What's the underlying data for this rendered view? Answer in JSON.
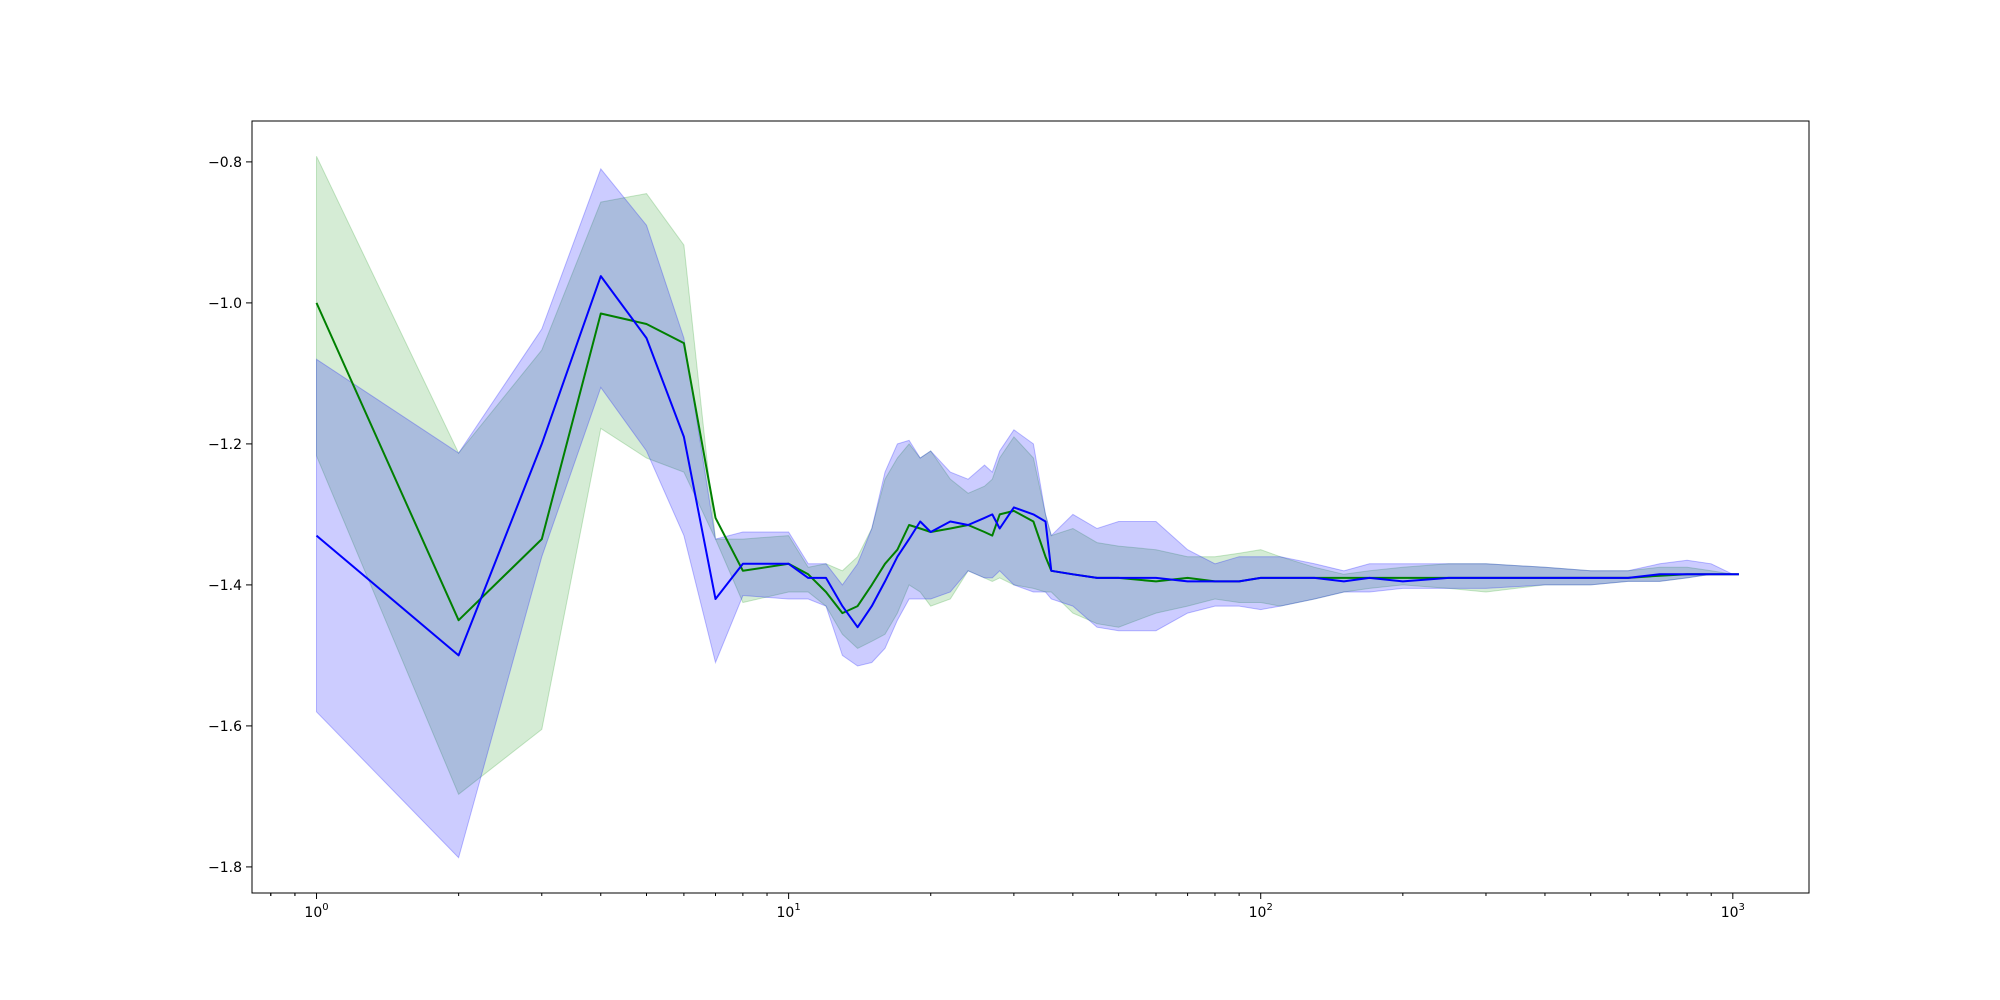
{
  "chart_data": {
    "type": "line",
    "title": "",
    "xlabel": "",
    "ylabel": "",
    "xscale": "log",
    "xlim": [
      0.73,
      1450
    ],
    "ylim": [
      -1.837,
      -0.742
    ],
    "grid": false,
    "legend": "none",
    "x_ticks": [
      {
        "value": 1,
        "base": "10",
        "exp": "0"
      },
      {
        "value": 10,
        "base": "10",
        "exp": "1"
      },
      {
        "value": 100,
        "base": "10",
        "exp": "2"
      },
      {
        "value": 1000,
        "base": "10",
        "exp": "3"
      }
    ],
    "y_ticks": [
      {
        "value": -0.8,
        "label": "−0.8"
      },
      {
        "value": -1.0,
        "label": "−1.0"
      },
      {
        "value": -1.2,
        "label": "−1.2"
      },
      {
        "value": -1.4,
        "label": "−1.4"
      },
      {
        "value": -1.6,
        "label": "−1.6"
      },
      {
        "value": -1.8,
        "label": "−1.8"
      }
    ],
    "series": [
      {
        "color": "#008000",
        "band_color": "#2ca02c",
        "x": [
          1,
          2,
          3,
          4,
          5,
          6,
          7,
          8,
          10,
          11,
          12,
          13,
          14,
          15,
          16,
          17,
          18,
          19,
          20,
          22,
          24,
          26,
          27,
          28,
          30,
          33,
          35,
          36,
          40,
          45,
          50,
          60,
          70,
          80,
          90,
          100,
          110,
          130,
          150,
          170,
          200,
          250,
          300,
          400,
          500,
          600,
          700,
          800,
          900,
          1000,
          1030
        ],
        "y": [
          -1.0,
          -1.45,
          -1.335,
          -1.015,
          -1.03,
          -1.057,
          -1.305,
          -1.38,
          -1.37,
          -1.385,
          -1.41,
          -1.44,
          -1.43,
          -1.4,
          -1.37,
          -1.35,
          -1.315,
          -1.32,
          -1.325,
          -1.32,
          -1.315,
          -1.325,
          -1.33,
          -1.3,
          -1.295,
          -1.31,
          -1.36,
          -1.38,
          -1.385,
          -1.39,
          -1.39,
          -1.395,
          -1.39,
          -1.395,
          -1.395,
          -1.39,
          -1.39,
          -1.39,
          -1.39,
          -1.39,
          -1.39,
          -1.39,
          -1.39,
          -1.39,
          -1.39,
          -1.39,
          -1.387,
          -1.385,
          -1.385,
          -1.385,
          -1.385
        ],
        "upper": [
          -0.792,
          -1.213,
          -1.067,
          -0.857,
          -0.845,
          -0.918,
          -1.335,
          -1.335,
          -1.33,
          -1.375,
          -1.37,
          -1.38,
          -1.36,
          -1.32,
          -1.25,
          -1.22,
          -1.2,
          -1.22,
          -1.21,
          -1.25,
          -1.27,
          -1.26,
          -1.25,
          -1.22,
          -1.19,
          -1.22,
          -1.3,
          -1.33,
          -1.32,
          -1.34,
          -1.345,
          -1.35,
          -1.36,
          -1.36,
          -1.355,
          -1.35,
          -1.36,
          -1.375,
          -1.385,
          -1.38,
          -1.375,
          -1.37,
          -1.37,
          -1.375,
          -1.38,
          -1.38,
          -1.375,
          -1.375,
          -1.38,
          -1.385,
          -1.385
        ],
        "lower": [
          -1.217,
          -1.697,
          -1.605,
          -1.178,
          -1.22,
          -1.24,
          -1.335,
          -1.425,
          -1.41,
          -1.41,
          -1.43,
          -1.47,
          -1.49,
          -1.48,
          -1.47,
          -1.44,
          -1.4,
          -1.41,
          -1.43,
          -1.42,
          -1.38,
          -1.39,
          -1.395,
          -1.39,
          -1.4,
          -1.405,
          -1.41,
          -1.41,
          -1.44,
          -1.455,
          -1.46,
          -1.44,
          -1.43,
          -1.42,
          -1.425,
          -1.425,
          -1.43,
          -1.42,
          -1.41,
          -1.405,
          -1.4,
          -1.405,
          -1.41,
          -1.4,
          -1.4,
          -1.395,
          -1.395,
          -1.39,
          -1.385,
          -1.385,
          -1.385
        ]
      },
      {
        "color": "#0000ff",
        "band_color": "#0000ff",
        "x": [
          1,
          2,
          3,
          4,
          5,
          6,
          7,
          8,
          10,
          11,
          12,
          13,
          14,
          15,
          16,
          17,
          18,
          19,
          20,
          22,
          24,
          26,
          27,
          28,
          30,
          33,
          35,
          36,
          40,
          45,
          50,
          60,
          70,
          80,
          90,
          100,
          110,
          130,
          150,
          170,
          200,
          250,
          300,
          400,
          500,
          600,
          700,
          800,
          900,
          1000,
          1030
        ],
        "y": [
          -1.33,
          -1.5,
          -1.2,
          -0.962,
          -1.05,
          -1.19,
          -1.42,
          -1.37,
          -1.37,
          -1.39,
          -1.39,
          -1.43,
          -1.46,
          -1.43,
          -1.395,
          -1.36,
          -1.335,
          -1.31,
          -1.325,
          -1.31,
          -1.315,
          -1.305,
          -1.3,
          -1.32,
          -1.29,
          -1.3,
          -1.31,
          -1.38,
          -1.385,
          -1.39,
          -1.39,
          -1.39,
          -1.395,
          -1.395,
          -1.395,
          -1.39,
          -1.39,
          -1.39,
          -1.395,
          -1.39,
          -1.395,
          -1.39,
          -1.39,
          -1.39,
          -1.39,
          -1.39,
          -1.385,
          -1.385,
          -1.385,
          -1.385,
          -1.385
        ],
        "upper": [
          -1.08,
          -1.213,
          -1.037,
          -0.81,
          -0.89,
          -1.05,
          -1.335,
          -1.325,
          -1.325,
          -1.37,
          -1.37,
          -1.4,
          -1.37,
          -1.32,
          -1.24,
          -1.2,
          -1.195,
          -1.22,
          -1.21,
          -1.24,
          -1.25,
          -1.23,
          -1.24,
          -1.21,
          -1.18,
          -1.2,
          -1.3,
          -1.33,
          -1.3,
          -1.32,
          -1.31,
          -1.31,
          -1.35,
          -1.37,
          -1.36,
          -1.36,
          -1.36,
          -1.37,
          -1.38,
          -1.37,
          -1.37,
          -1.37,
          -1.37,
          -1.375,
          -1.38,
          -1.38,
          -1.37,
          -1.365,
          -1.37,
          -1.385,
          -1.385
        ],
        "lower": [
          -1.58,
          -1.787,
          -1.36,
          -1.12,
          -1.21,
          -1.33,
          -1.51,
          -1.415,
          -1.42,
          -1.42,
          -1.43,
          -1.5,
          -1.515,
          -1.51,
          -1.49,
          -1.45,
          -1.42,
          -1.42,
          -1.42,
          -1.41,
          -1.38,
          -1.39,
          -1.39,
          -1.38,
          -1.4,
          -1.41,
          -1.41,
          -1.42,
          -1.43,
          -1.46,
          -1.465,
          -1.465,
          -1.44,
          -1.43,
          -1.43,
          -1.435,
          -1.43,
          -1.42,
          -1.41,
          -1.41,
          -1.405,
          -1.405,
          -1.405,
          -1.4,
          -1.4,
          -1.395,
          -1.395,
          -1.39,
          -1.385,
          -1.385,
          -1.385
        ]
      }
    ]
  }
}
